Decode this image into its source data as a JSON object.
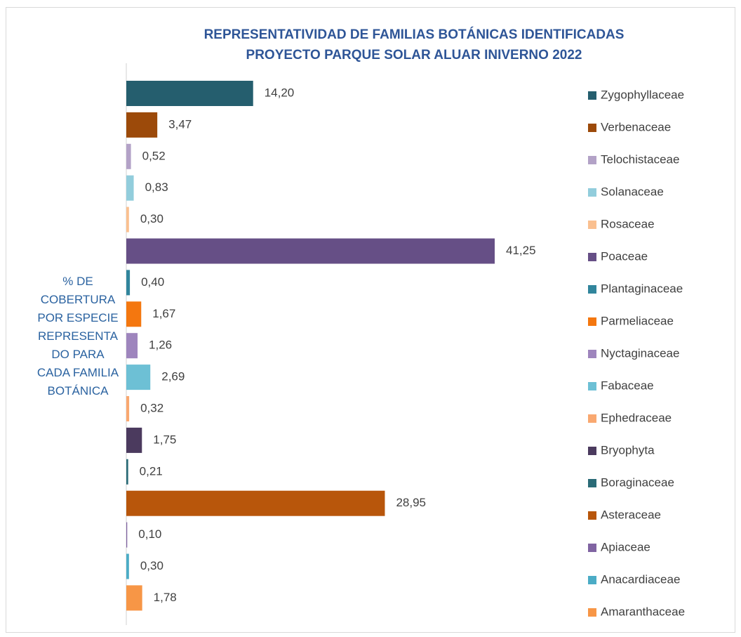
{
  "chart_data": {
    "type": "barh",
    "title": [
      "REPRESENTATIVIDAD DE FAMILIAS BOTÁNICAS IDENTIFICADAS",
      "PROYECTO PARQUE SOLAR ALUAR INIVERNO 2022"
    ],
    "ylabel": "% DE COBERTURA POR ESPECIE REPRESENTADO PARA CADA FAMILIA BOTÁNICA",
    "categories": [
      "Zygophyllaceae",
      "Verbenaceae",
      "Telochistaceae",
      "Solanaceae",
      "Rosaceae",
      "Poaceae",
      "Plantaginaceae",
      "Parmeliaceae",
      "Nyctaginaceae",
      "Fabaceae",
      "Ephedraceae",
      "Bryophyta",
      "Boraginaceae",
      "Asteraceae",
      "Apiaceae",
      "Anacardiaceae",
      "Amaranthaceae"
    ],
    "values": [
      14.2,
      3.47,
      0.52,
      0.83,
      0.3,
      41.25,
      0.4,
      1.67,
      1.26,
      2.69,
      0.32,
      1.75,
      0.21,
      28.95,
      0.1,
      0.3,
      1.78
    ],
    "value_labels": [
      "14,20",
      "3,47",
      "0,52",
      "0,83",
      "0,30",
      "41,25",
      "0,40",
      "1,67",
      "1,26",
      "2,69",
      "0,32",
      "1,75",
      "0,21",
      "28,95",
      "0,10",
      "0,30",
      "1,78"
    ],
    "colors": [
      "#255e6e",
      "#9c4a0a",
      "#b3a2c7",
      "#92cddc",
      "#fac090",
      "#664f86",
      "#31859c",
      "#f4770f",
      "#9e85bd",
      "#6dc0d5",
      "#f9a870",
      "#4b3a5e",
      "#2a6b77",
      "#b8560b",
      "#8064a2",
      "#4bacc6",
      "#f79646"
    ],
    "legend": "right"
  }
}
